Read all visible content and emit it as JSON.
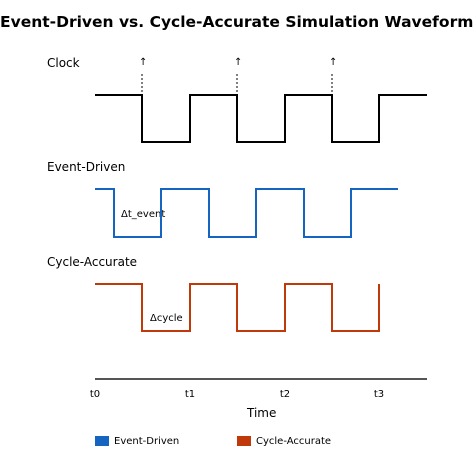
{
  "title": "Event-Driven vs. Cycle-Accurate Simulation Waveforms",
  "rows": {
    "clock": {
      "label": "Clock",
      "color": "#000000",
      "edge_marker": "↑"
    },
    "event": {
      "label": "Event-Driven",
      "color": "#1565c0",
      "annotation": "Δt_event"
    },
    "cycle": {
      "label": "Cycle-Accurate",
      "color": "#c0390b",
      "annotation": "Δcycle"
    }
  },
  "axis": {
    "label": "Time",
    "ticks": [
      "t0",
      "t1",
      "t2",
      "t3"
    ],
    "color": "#555555"
  },
  "legend": [
    {
      "label": "Event-Driven",
      "color": "#1565c0"
    },
    {
      "label": "Cycle-Accurate",
      "color": "#c0390b"
    }
  ]
}
